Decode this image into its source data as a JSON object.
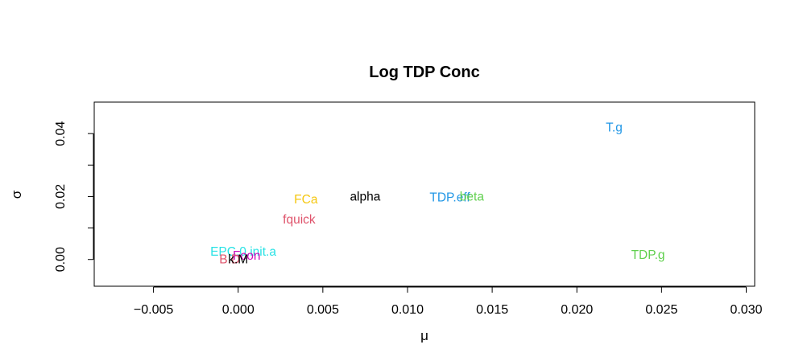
{
  "chart_data": {
    "type": "scatter",
    "title": "Log TDP Conc",
    "xlabel": "μ",
    "ylabel": "σ",
    "xlim": [
      -0.0085,
      0.0305
    ],
    "ylim": [
      -0.0085,
      0.05
    ],
    "x_ticks": [
      {
        "value": -0.005,
        "label": "−0.005"
      },
      {
        "value": 0.0,
        "label": "0.000"
      },
      {
        "value": 0.005,
        "label": "0.005"
      },
      {
        "value": 0.01,
        "label": "0.010"
      },
      {
        "value": 0.015,
        "label": "0.015"
      },
      {
        "value": 0.02,
        "label": "0.020"
      },
      {
        "value": 0.025,
        "label": "0.025"
      },
      {
        "value": 0.03,
        "label": "0.030"
      }
    ],
    "y_ticks": [
      {
        "value": 0.0,
        "label": "0.00"
      },
      {
        "value": 0.01,
        "label": ""
      },
      {
        "value": 0.02,
        "label": "0.02"
      },
      {
        "value": 0.03,
        "label": ""
      },
      {
        "value": 0.04,
        "label": "0.04"
      }
    ],
    "grid": false,
    "legend": "none",
    "points": [
      {
        "label": "T.g",
        "x": 0.0222,
        "y": 0.0417,
        "color": "#2297E6"
      },
      {
        "label": "FCa",
        "x": 0.004,
        "y": 0.0188,
        "color": "#F5C710"
      },
      {
        "label": "alpha",
        "x": 0.0075,
        "y": 0.0198,
        "color": "#000000"
      },
      {
        "label": "TDP.eff",
        "x": 0.0125,
        "y": 0.0195,
        "color": "#2297E6"
      },
      {
        "label": "beta",
        "x": 0.0138,
        "y": 0.0198,
        "color": "#61D04F"
      },
      {
        "label": "fquick",
        "x": 0.0036,
        "y": 0.0125,
        "color": "#DF536B"
      },
      {
        "label": "EPC.0.init.a",
        "x": 0.0003,
        "y": 0.0022,
        "color": "#28E2E5"
      },
      {
        "label": "TDP.g",
        "x": 0.0242,
        "y": 0.0012,
        "color": "#61D04F"
      },
      {
        "label": "Fcon",
        "x": 0.0005,
        "y": 0.001,
        "color": "#CD0BBC"
      },
      {
        "label": "B.D",
        "x": -0.0005,
        "y": -0.0002,
        "color": "#DF536B"
      },
      {
        "label": "k.M",
        "x": 0.0,
        "y": -0.0002,
        "color": "#000000"
      }
    ]
  }
}
